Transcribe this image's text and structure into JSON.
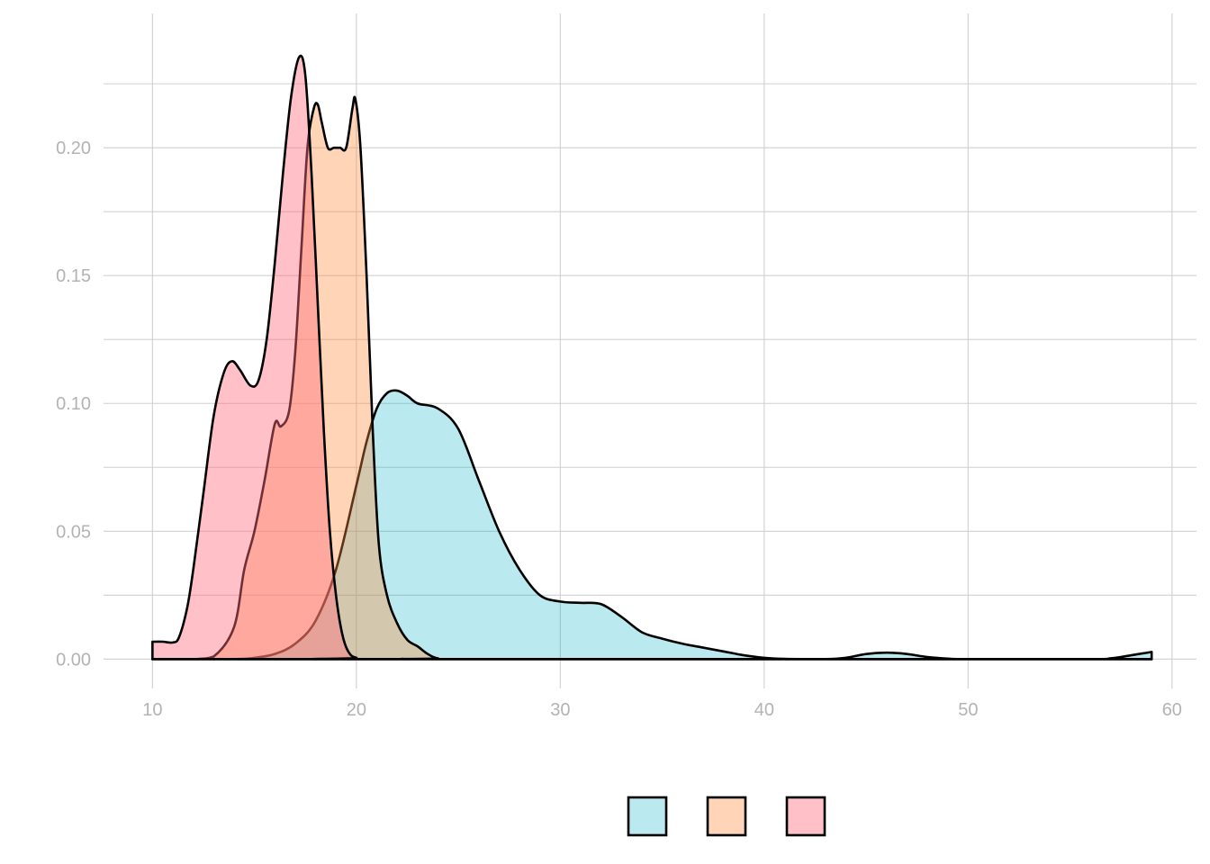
{
  "chart_data": {
    "type": "area",
    "title": "",
    "xlabel": "",
    "ylabel": "",
    "xlim": [
      7.6,
      61.2
    ],
    "ylim": [
      -0.0115,
      0.2525
    ],
    "x_ticks": [
      10,
      20,
      30,
      40,
      50,
      60
    ],
    "y_ticks": [
      0.0,
      0.05,
      0.1,
      0.15,
      0.2
    ],
    "x_tick_labels": [
      "10",
      "20",
      "30",
      "40",
      "50",
      "60"
    ],
    "y_tick_labels": [
      "0.00",
      "0.05",
      "0.10",
      "0.15",
      "0.20"
    ],
    "grid": true,
    "legend_position": "bottom",
    "series": [
      {
        "color": "#00B1C5",
        "fill_opacity": 0.27,
        "points": [
          [
            10,
            0.0
          ],
          [
            14,
            0.0
          ],
          [
            15,
            0.0005
          ],
          [
            16,
            0.002
          ],
          [
            17,
            0.006
          ],
          [
            18,
            0.015
          ],
          [
            19,
            0.035
          ],
          [
            20,
            0.068
          ],
          [
            20.5,
            0.085
          ],
          [
            21,
            0.098
          ],
          [
            21.5,
            0.104
          ],
          [
            22,
            0.105
          ],
          [
            22.5,
            0.103
          ],
          [
            23,
            0.1
          ],
          [
            24,
            0.098
          ],
          [
            25,
            0.09
          ],
          [
            26,
            0.07
          ],
          [
            27,
            0.05
          ],
          [
            28,
            0.035
          ],
          [
            29,
            0.025
          ],
          [
            30,
            0.0225
          ],
          [
            31,
            0.022
          ],
          [
            32,
            0.0215
          ],
          [
            33,
            0.0165
          ],
          [
            34,
            0.0105
          ],
          [
            35,
            0.008
          ],
          [
            36,
            0.006
          ],
          [
            37,
            0.0045
          ],
          [
            38,
            0.003
          ],
          [
            39,
            0.0015
          ],
          [
            40,
            0.0005
          ],
          [
            41,
            0.0001
          ],
          [
            43,
            0.0
          ],
          [
            44,
            0.0005
          ],
          [
            45,
            0.002
          ],
          [
            46,
            0.0025
          ],
          [
            47,
            0.002
          ],
          [
            48,
            0.0008
          ],
          [
            49,
            0.0002
          ],
          [
            50,
            0.0
          ],
          [
            56,
            0.0
          ],
          [
            57,
            0.0003
          ],
          [
            58,
            0.0015
          ],
          [
            59,
            0.0028
          ]
        ]
      },
      {
        "color": "#FF8A3D",
        "fill_opacity": 0.37,
        "points": [
          [
            10,
            0.0
          ],
          [
            12,
            0.0
          ],
          [
            13,
            0.001
          ],
          [
            14,
            0.0125
          ],
          [
            14.5,
            0.035
          ],
          [
            15,
            0.05
          ],
          [
            15.5,
            0.07
          ],
          [
            16,
            0.092
          ],
          [
            16.3,
            0.091
          ],
          [
            16.7,
            0.097
          ],
          [
            17,
            0.12
          ],
          [
            17.3,
            0.16
          ],
          [
            17.6,
            0.2
          ],
          [
            17.9,
            0.215
          ],
          [
            18.1,
            0.217
          ],
          [
            18.3,
            0.21
          ],
          [
            18.6,
            0.2
          ],
          [
            18.9,
            0.2
          ],
          [
            19.2,
            0.2
          ],
          [
            19.5,
            0.2
          ],
          [
            19.8,
            0.215
          ],
          [
            19.95,
            0.219
          ],
          [
            20.2,
            0.2
          ],
          [
            20.5,
            0.15
          ],
          [
            20.8,
            0.09
          ],
          [
            21.1,
            0.045
          ],
          [
            21.5,
            0.025
          ],
          [
            22,
            0.014
          ],
          [
            22.5,
            0.0075
          ],
          [
            23,
            0.005
          ],
          [
            23.5,
            0.002
          ],
          [
            24,
            0.0003
          ],
          [
            25,
            0.0
          ],
          [
            59,
            0.0
          ]
        ]
      },
      {
        "color": "#FF6F7E",
        "fill_opacity": 0.43,
        "points": [
          [
            10,
            0.0068
          ],
          [
            10.5,
            0.0068
          ],
          [
            11,
            0.0065
          ],
          [
            11.3,
            0.0085
          ],
          [
            11.7,
            0.02
          ],
          [
            12,
            0.035
          ],
          [
            12.5,
            0.065
          ],
          [
            13,
            0.095
          ],
          [
            13.5,
            0.112
          ],
          [
            13.9,
            0.1165
          ],
          [
            14.3,
            0.113
          ],
          [
            14.8,
            0.107
          ],
          [
            15.2,
            0.109
          ],
          [
            15.6,
            0.125
          ],
          [
            16,
            0.155
          ],
          [
            16.4,
            0.19
          ],
          [
            16.8,
            0.22
          ],
          [
            17.2,
            0.2355
          ],
          [
            17.5,
            0.228
          ],
          [
            17.8,
            0.19
          ],
          [
            18.1,
            0.14
          ],
          [
            18.4,
            0.09
          ],
          [
            18.7,
            0.05
          ],
          [
            19,
            0.025
          ],
          [
            19.3,
            0.01
          ],
          [
            19.6,
            0.003
          ],
          [
            20,
            0.0005
          ],
          [
            21,
            0.0
          ],
          [
            59,
            0.0
          ]
        ]
      }
    ]
  }
}
